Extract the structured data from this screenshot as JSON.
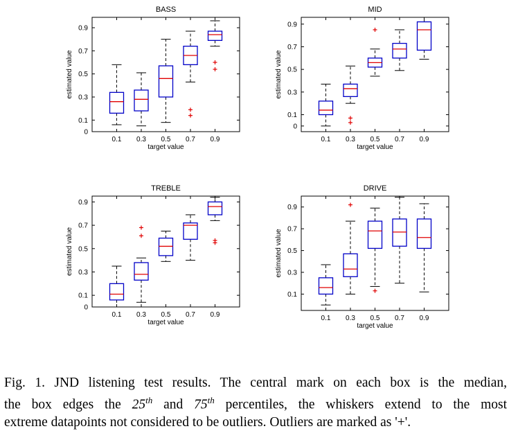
{
  "chart_data": [
    {
      "type": "box",
      "title": "BASS",
      "xlabel": "target value",
      "ylabel": "estimated value",
      "categories": [
        "0.1",
        "0.3",
        "0.5",
        "0.7",
        "0.9"
      ],
      "yticks": [
        0,
        0.1,
        0.3,
        0.5,
        0.7,
        0.9
      ],
      "ylim": [
        0,
        0.99
      ],
      "boxes": [
        {
          "lower_whisker": 0.06,
          "q1": 0.16,
          "median": 0.26,
          "q3": 0.34,
          "upper_whisker": 0.58,
          "outliers": []
        },
        {
          "lower_whisker": 0.05,
          "q1": 0.18,
          "median": 0.28,
          "q3": 0.36,
          "upper_whisker": 0.51,
          "outliers": []
        },
        {
          "lower_whisker": 0.08,
          "q1": 0.3,
          "median": 0.46,
          "q3": 0.57,
          "upper_whisker": 0.8,
          "outliers": []
        },
        {
          "lower_whisker": 0.43,
          "q1": 0.58,
          "median": 0.66,
          "q3": 0.74,
          "upper_whisker": 0.87,
          "outliers": [
            0.19,
            0.14
          ]
        },
        {
          "lower_whisker": 0.74,
          "q1": 0.79,
          "median": 0.84,
          "q3": 0.87,
          "upper_whisker": 0.96,
          "outliers": [
            0.6,
            0.54
          ]
        }
      ]
    },
    {
      "type": "box",
      "title": "MID",
      "xlabel": "target value",
      "ylabel": "estimated value",
      "categories": [
        "0.1",
        "0.3",
        "0.5",
        "0.7",
        "0.9"
      ],
      "yticks": [
        0,
        0.1,
        0.3,
        0.5,
        0.7,
        0.9
      ],
      "ylim": [
        -0.05,
        0.96
      ],
      "boxes": [
        {
          "lower_whisker": 0.0,
          "q1": 0.1,
          "median": 0.14,
          "q3": 0.22,
          "upper_whisker": 0.37,
          "outliers": []
        },
        {
          "lower_whisker": 0.2,
          "q1": 0.26,
          "median": 0.33,
          "q3": 0.37,
          "upper_whisker": 0.53,
          "outliers": [
            0.07,
            0.03
          ]
        },
        {
          "lower_whisker": 0.44,
          "q1": 0.52,
          "median": 0.56,
          "q3": 0.6,
          "upper_whisker": 0.68,
          "outliers": [
            0.85
          ]
        },
        {
          "lower_whisker": 0.49,
          "q1": 0.6,
          "median": 0.68,
          "q3": 0.73,
          "upper_whisker": 0.85,
          "outliers": []
        },
        {
          "lower_whisker": 0.59,
          "q1": 0.67,
          "median": 0.85,
          "q3": 0.92,
          "upper_whisker": 0.96,
          "outliers": []
        }
      ]
    },
    {
      "type": "box",
      "title": "TREBLE",
      "xlabel": "target value",
      "ylabel": "estimated value",
      "categories": [
        "0.1",
        "0.3",
        "0.5",
        "0.7",
        "0.9"
      ],
      "yticks": [
        0,
        0.1,
        0.3,
        0.5,
        0.7,
        0.9
      ],
      "ylim": [
        0,
        0.95
      ],
      "boxes": [
        {
          "lower_whisker": 0.0,
          "q1": 0.06,
          "median": 0.11,
          "q3": 0.2,
          "upper_whisker": 0.35,
          "outliers": []
        },
        {
          "lower_whisker": 0.04,
          "q1": 0.23,
          "median": 0.28,
          "q3": 0.38,
          "upper_whisker": 0.42,
          "outliers": [
            0.68,
            0.61
          ]
        },
        {
          "lower_whisker": 0.39,
          "q1": 0.44,
          "median": 0.52,
          "q3": 0.59,
          "upper_whisker": 0.65,
          "outliers": []
        },
        {
          "lower_whisker": 0.4,
          "q1": 0.58,
          "median": 0.7,
          "q3": 0.72,
          "upper_whisker": 0.79,
          "outliers": []
        },
        {
          "lower_whisker": 0.74,
          "q1": 0.79,
          "median": 0.86,
          "q3": 0.9,
          "upper_whisker": 0.94,
          "outliers": [
            0.57,
            0.55
          ]
        }
      ]
    },
    {
      "type": "box",
      "title": "DRIVE",
      "xlabel": "target value",
      "ylabel": "estimated value",
      "categories": [
        "0.1",
        "0.3",
        "0.5",
        "0.7",
        "0.9"
      ],
      "yticks": [
        0.1,
        0.3,
        0.5,
        0.7,
        0.9
      ],
      "ylim": [
        -0.05,
        1.0
      ],
      "boxes": [
        {
          "lower_whisker": 0.0,
          "q1": 0.1,
          "median": 0.16,
          "q3": 0.25,
          "upper_whisker": 0.37,
          "outliers": []
        },
        {
          "lower_whisker": 0.1,
          "q1": 0.26,
          "median": 0.33,
          "q3": 0.47,
          "upper_whisker": 0.77,
          "outliers": [
            0.92
          ]
        },
        {
          "lower_whisker": 0.17,
          "q1": 0.52,
          "median": 0.68,
          "q3": 0.77,
          "upper_whisker": 0.89,
          "outliers": [
            0.13
          ]
        },
        {
          "lower_whisker": 0.2,
          "q1": 0.54,
          "median": 0.67,
          "q3": 0.79,
          "upper_whisker": 0.99,
          "outliers": []
        },
        {
          "lower_whisker": 0.12,
          "q1": 0.52,
          "median": 0.62,
          "q3": 0.79,
          "upper_whisker": 0.93,
          "outliers": []
        }
      ]
    }
  ],
  "colors": {
    "box": "#0000c8",
    "median": "#e00000",
    "whisker": "#000000",
    "outlier": "#e00000"
  },
  "caption": {
    "line1": "Fig. 1.  JND listening test results. The central mark on each box is the median,",
    "line2_pre": "the box edges the ",
    "pct25": "25",
    "th1": "th",
    "line2_mid": " and ",
    "pct75": "75",
    "th2": "th",
    "line2_post": " percentiles, the whiskers extend to the most",
    "line3": "extreme datapoints not considered to be outliers. Outliers are marked as '+'."
  }
}
